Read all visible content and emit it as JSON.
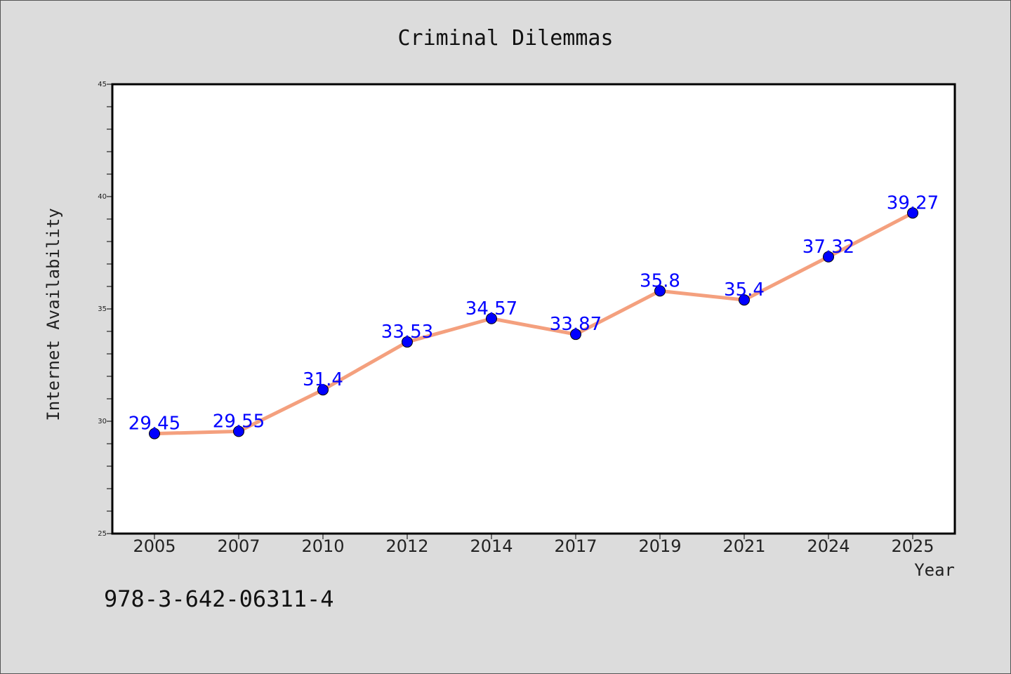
{
  "chart_data": {
    "type": "line",
    "title": "Criminal Dilemmas",
    "xlabel": "Year",
    "ylabel": "Internet Availability",
    "categories": [
      "2005",
      "2007",
      "2010",
      "2012",
      "2014",
      "2017",
      "2019",
      "2021",
      "2024",
      "2025"
    ],
    "series": [
      {
        "values": [
          29.45,
          29.55,
          31.4,
          33.53,
          34.57,
          33.87,
          35.8,
          35.4,
          37.32,
          39.27
        ],
        "labels": [
          "29.45",
          "29.55",
          "31.4",
          "33.53",
          "34.57",
          "33.87",
          "35.8",
          "35.4",
          "37.32",
          "39.27"
        ],
        "line_color": "#f4a07e",
        "marker_color": "#0000ff"
      }
    ],
    "ylim": [
      25,
      45
    ],
    "yticks": [
      "25",
      "30",
      "35",
      "40",
      "45"
    ],
    "grid": false,
    "legend": "none"
  },
  "footer": {
    "isbn": "978-3-642-06311-4"
  },
  "colors": {
    "background": "#dcdcdc",
    "plot_area": "#ffffff",
    "line": "#f4a07e",
    "marker": "#0000ff",
    "data_label": "#0000ff"
  }
}
